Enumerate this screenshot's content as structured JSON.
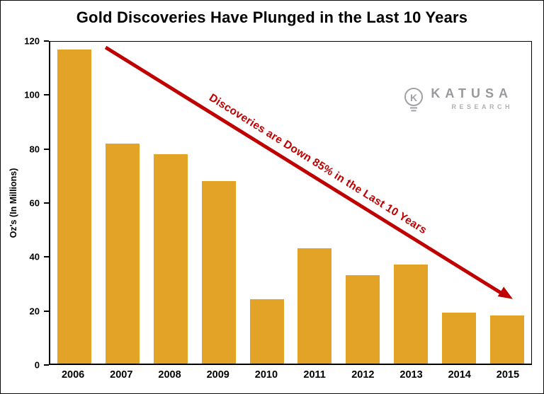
{
  "logo": {
    "icon_letter": "K",
    "name": "KATUSA",
    "subtitle": "RESEARCH"
  },
  "chart_data": {
    "type": "bar",
    "title": "Gold Discoveries Have Plunged in the Last 10 Years",
    "categories": [
      "2006",
      "2007",
      "2008",
      "2009",
      "2010",
      "2011",
      "2012",
      "2013",
      "2014",
      "2015"
    ],
    "values": [
      117,
      82,
      78,
      68,
      24,
      43,
      33,
      37,
      19,
      18
    ],
    "xlabel": "",
    "ylabel": "Oz's (In Millions)",
    "ylim": [
      0,
      120
    ],
    "yticks": [
      0,
      20,
      40,
      60,
      80,
      100,
      120
    ],
    "grid": false,
    "legend": "none",
    "bar_color": "#e2a327",
    "axis_color": "#000000",
    "annotation": {
      "text": "Discoveries are Down 85% in the Last 10 Years",
      "color": "#c00000",
      "style": "diagonal-arrow-down-right"
    }
  }
}
